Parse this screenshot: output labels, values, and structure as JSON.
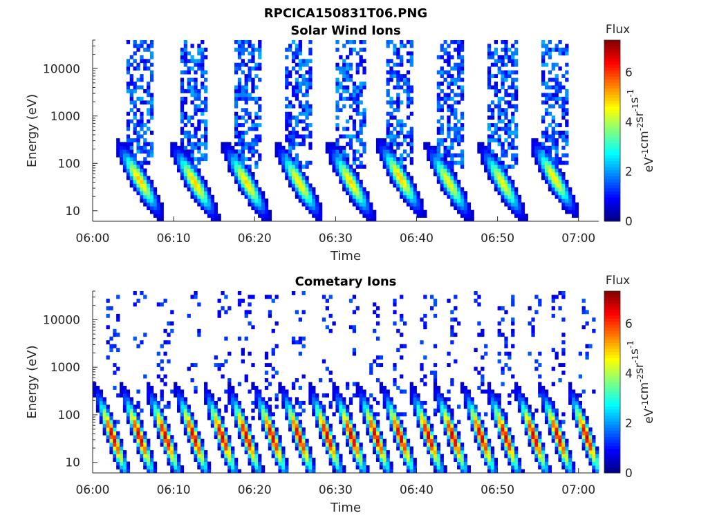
{
  "figure": {
    "main_title": "RPCICA150831T06.PNG"
  },
  "chart_data": [
    {
      "type": "heatmap",
      "title": "Solar Wind Ions",
      "xlabel": "Time",
      "ylabel": "Energy (eV)",
      "x_ticks": [
        "06:00",
        "06:10",
        "06:20",
        "06:30",
        "06:40",
        "06:50",
        "07:00"
      ],
      "x_range_minutes": [
        0,
        62.5
      ],
      "y_scale": "log",
      "y_ticks": [
        "10",
        "100",
        "1000",
        "10000"
      ],
      "y_range": [
        6,
        40000
      ],
      "colorbar": {
        "title": "Flux",
        "label": "eV-1cm-2sr-1s-1",
        "range": [
          0,
          7.3
        ],
        "ticks": [
          "0",
          "2",
          "4",
          "6"
        ],
        "colormap": "jet"
      },
      "bursts": [
        {
          "center_minutes": 5.8,
          "peak_flux": 5.0,
          "peak_energy_eV": 45
        },
        {
          "center_minutes": 12.6,
          "peak_flux": 5.0,
          "peak_energy_eV": 40
        },
        {
          "center_minutes": 19.0,
          "peak_flux": 4.9,
          "peak_energy_eV": 40
        },
        {
          "center_minutes": 25.5,
          "peak_flux": 4.8,
          "peak_energy_eV": 40
        },
        {
          "center_minutes": 31.9,
          "peak_flux": 4.9,
          "peak_energy_eV": 40
        },
        {
          "center_minutes": 38.0,
          "peak_flux": 5.0,
          "peak_energy_eV": 50
        },
        {
          "center_minutes": 44.0,
          "peak_flux": 4.6,
          "peak_energy_eV": 40
        },
        {
          "center_minutes": 50.6,
          "peak_flux": 4.6,
          "peak_energy_eV": 40
        },
        {
          "center_minutes": 57.0,
          "peak_flux": 4.8,
          "peak_energy_eV": 50
        }
      ]
    },
    {
      "type": "heatmap",
      "title": "Cometary Ions",
      "xlabel": "Time",
      "ylabel": "Energy (eV)",
      "x_ticks": [
        "06:00",
        "06:10",
        "06:20",
        "06:30",
        "06:40",
        "06:50",
        "07:00"
      ],
      "x_range_minutes": [
        0,
        62.5
      ],
      "y_scale": "log",
      "y_ticks": [
        "10",
        "100",
        "1000",
        "10000"
      ],
      "y_range": [
        6,
        40000
      ],
      "colorbar": {
        "title": "Flux",
        "label": "eV-1cm-2sr-1s-1",
        "range": [
          0,
          7.3
        ],
        "ticks": [
          "0",
          "2",
          "4",
          "6"
        ],
        "colormap": "jet"
      },
      "bursts": [
        {
          "center_minutes": 2.5,
          "peak_flux": 6.8,
          "peak_energy_eV": 35
        },
        {
          "center_minutes": 5.8,
          "peak_flux": 6.8,
          "peak_energy_eV": 35
        },
        {
          "center_minutes": 9.0,
          "peak_flux": 6.8,
          "peak_energy_eV": 35
        },
        {
          "center_minutes": 12.5,
          "peak_flux": 6.8,
          "peak_energy_eV": 35
        },
        {
          "center_minutes": 16.0,
          "peak_flux": 6.8,
          "peak_energy_eV": 35
        },
        {
          "center_minutes": 19.0,
          "peak_flux": 6.8,
          "peak_energy_eV": 35
        },
        {
          "center_minutes": 22.2,
          "peak_flux": 6.8,
          "peak_energy_eV": 35
        },
        {
          "center_minutes": 25.5,
          "peak_flux": 6.8,
          "peak_energy_eV": 35
        },
        {
          "center_minutes": 29.0,
          "peak_flux": 6.8,
          "peak_energy_eV": 35
        },
        {
          "center_minutes": 32.0,
          "peak_flux": 6.8,
          "peak_energy_eV": 35
        },
        {
          "center_minutes": 35.0,
          "peak_flux": 6.8,
          "peak_energy_eV": 35
        },
        {
          "center_minutes": 38.0,
          "peak_flux": 6.8,
          "peak_energy_eV": 35
        },
        {
          "center_minutes": 41.5,
          "peak_flux": 6.8,
          "peak_energy_eV": 35
        },
        {
          "center_minutes": 44.5,
          "peak_flux": 6.8,
          "peak_energy_eV": 35
        },
        {
          "center_minutes": 48.0,
          "peak_flux": 6.8,
          "peak_energy_eV": 35
        },
        {
          "center_minutes": 51.0,
          "peak_flux": 6.8,
          "peak_energy_eV": 35
        },
        {
          "center_minutes": 54.5,
          "peak_flux": 6.8,
          "peak_energy_eV": 35
        },
        {
          "center_minutes": 57.5,
          "peak_flux": 6.8,
          "peak_energy_eV": 35
        },
        {
          "center_minutes": 61.0,
          "peak_flux": 6.8,
          "peak_energy_eV": 35
        }
      ]
    }
  ]
}
